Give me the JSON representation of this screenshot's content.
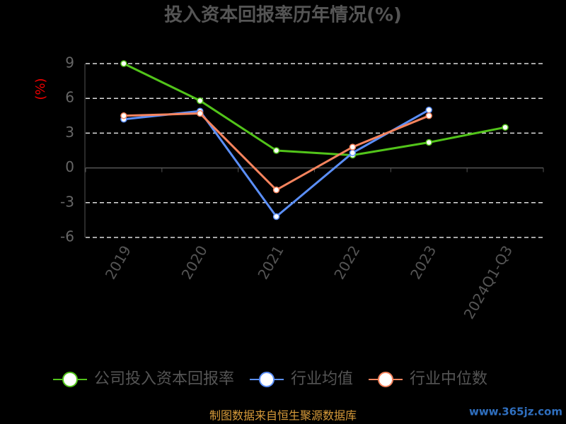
{
  "chart_data": {
    "type": "line",
    "title": "投入资本回报率历年情况(%)",
    "y_label": "(%)",
    "categories": [
      "2019",
      "2020",
      "2021",
      "2022",
      "2023",
      "2024Q1-Q3"
    ],
    "series": [
      {
        "name": "公司投入资本回报率",
        "color": "#52c41a",
        "values": [
          9.0,
          5.8,
          1.5,
          1.1,
          2.2,
          3.5
        ]
      },
      {
        "name": "行业均值",
        "color": "#5b8ff9",
        "values": [
          4.2,
          4.9,
          -4.2,
          1.3,
          5.0,
          null
        ]
      },
      {
        "name": "行业中位数",
        "color": "#f6845e",
        "values": [
          4.5,
          4.7,
          -1.9,
          1.8,
          4.5,
          null
        ]
      }
    ],
    "ylim": [
      -6,
      9
    ],
    "yticks": [
      9,
      6,
      3,
      0,
      -3,
      -6
    ],
    "grid": true,
    "source": "制图数据来自恒生聚源数据库",
    "watermark": "www.365jz.com"
  }
}
